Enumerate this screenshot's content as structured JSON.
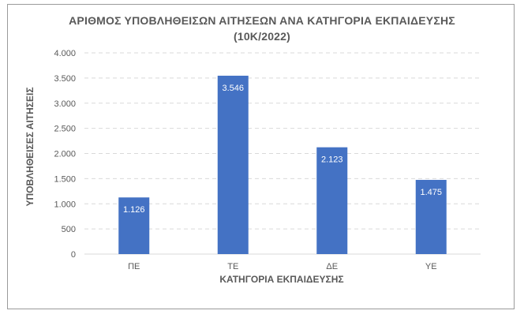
{
  "chart_data": {
    "type": "bar",
    "title": "ΑΡΙΘΜΟΣ ΥΠΟΒΛΗΘΕΙΣΩΝ ΑΙΤΗΣΕΩΝ ΑΝΑ ΚΑΤΗΓΟΡΙΑ ΕΚΠΑΙΔΕΥΣΗΣ",
    "subtitle": "(10Κ/2022)",
    "xlabel": "ΚΑΤΗΓΟΡΙΑ ΕΚΠΑΙΔΕΥΣΗΣ",
    "ylabel": "ΥΠΟΒΛΗΘΕΙΣΕΣ ΑΙΤΗΣΕΙΣ",
    "categories": [
      "ΠΕ",
      "ΤΕ",
      "ΔΕ",
      "ΥΕ"
    ],
    "values": [
      1126,
      3546,
      2123,
      1475
    ],
    "value_labels": [
      "1.126",
      "3.546",
      "2.123",
      "1.475"
    ],
    "ylim": [
      0,
      4000
    ],
    "yticks": [
      0,
      500,
      1000,
      1500,
      2000,
      2500,
      3000,
      3500,
      4000
    ],
    "ytick_labels": [
      "0",
      "500",
      "1.000",
      "1.500",
      "2.000",
      "2.500",
      "3.000",
      "3.500",
      "4.000"
    ],
    "grid": true,
    "bar_color": "#4472c4",
    "grid_color": "#d9d9d9",
    "label_color": "#ffffff"
  }
}
